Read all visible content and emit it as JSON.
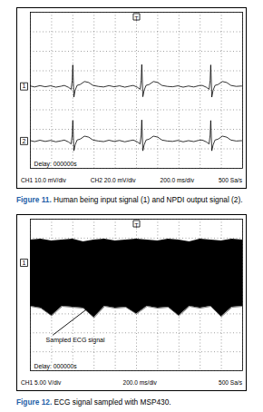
{
  "chart_data": [
    {
      "type": "line",
      "caption": {
        "label": "Figure 11.",
        "text": "Human being input signal (1) and NPDI output signal (2)."
      },
      "delay": "Delay: 000000s",
      "settings": [
        "CH1 10.0 mV/div",
        "CH2 20.0 mV/div",
        "200.0 ms/div",
        "500 Sa/s"
      ],
      "trigger": {
        "label": "T",
        "x": 1000
      },
      "xlim": [
        0,
        2000
      ],
      "xticks": [
        0,
        200,
        400,
        600,
        800,
        1000,
        1200,
        1400,
        1600,
        1800,
        2000
      ],
      "ylim": [
        -4,
        4
      ],
      "yticks": [
        -4,
        -3,
        -2,
        -1,
        0,
        1,
        2,
        3,
        4
      ],
      "grid": true,
      "tick_labels": false,
      "x": [
        0,
        40,
        90,
        140,
        190,
        240,
        290,
        320,
        360,
        384,
        394,
        400,
        410,
        422,
        440,
        470,
        510,
        550,
        590,
        640,
        690,
        740,
        790,
        840,
        890,
        940,
        970,
        1010,
        1034,
        1044,
        1050,
        1060,
        1072,
        1090,
        1120,
        1160,
        1200,
        1240,
        1290,
        1340,
        1390,
        1440,
        1490,
        1540,
        1590,
        1620,
        1660,
        1684,
        1694,
        1700,
        1710,
        1722,
        1740,
        1770,
        1810,
        1850,
        1890,
        1940,
        1990,
        2000
      ],
      "series": [
        {
          "name": "1",
          "color": "#000000",
          "offset": 0.2,
          "values": [
            0.22,
            0.17,
            0.24,
            0.18,
            0.23,
            0.16,
            0.21,
            0.25,
            0.15,
            0.05,
            0.5,
            1.3,
            -0.35,
            0.0,
            0.25,
            0.3,
            0.45,
            0.4,
            0.25,
            0.2,
            0.17,
            0.24,
            0.18,
            0.23,
            0.16,
            0.22,
            0.25,
            0.15,
            0.05,
            0.5,
            1.32,
            -0.33,
            0.0,
            0.25,
            0.3,
            0.45,
            0.4,
            0.25,
            0.2,
            0.18,
            0.23,
            0.16,
            0.22,
            0.17,
            0.24,
            0.25,
            0.15,
            0.05,
            0.5,
            1.3,
            -0.35,
            0.0,
            0.25,
            0.3,
            0.45,
            0.4,
            0.25,
            0.2,
            0.22,
            0.18
          ]
        },
        {
          "name": "2",
          "color": "#000000",
          "offset": -2.6,
          "values": [
            -2.58,
            -2.63,
            -2.56,
            -2.62,
            -2.57,
            -2.64,
            -2.59,
            -2.55,
            -2.65,
            -2.75,
            -2.3,
            -1.55,
            -3.1,
            -2.8,
            -2.55,
            -2.5,
            -2.35,
            -2.4,
            -2.55,
            -2.6,
            -2.63,
            -2.56,
            -2.62,
            -2.57,
            -2.64,
            -2.58,
            -2.55,
            -2.65,
            -2.75,
            -2.3,
            -1.52,
            -3.1,
            -2.8,
            -2.55,
            -2.5,
            -2.35,
            -2.4,
            -2.55,
            -2.6,
            -2.62,
            -2.57,
            -2.64,
            -2.58,
            -2.63,
            -2.56,
            -2.55,
            -2.65,
            -2.75,
            -2.3,
            -1.55,
            -3.1,
            -2.8,
            -2.55,
            -2.5,
            -2.35,
            -2.4,
            -2.55,
            -2.6,
            -2.58,
            -2.62
          ]
        }
      ]
    },
    {
      "type": "area",
      "caption": {
        "label": "Figure 12.",
        "text": "ECG signal sampled with MSP430."
      },
      "delay": "Delay: 000000s",
      "settings": [
        "CH1 5.00 V/div",
        "200.0 ms/div",
        "500 Sa/s"
      ],
      "trigger": {
        "label": "T",
        "x": 1000
      },
      "xlim": [
        0,
        2000
      ],
      "xticks": [
        0,
        200,
        400,
        600,
        800,
        1000,
        1200,
        1400,
        1600,
        1800,
        2000
      ],
      "ylim": [
        -4,
        4
      ],
      "yticks": [
        -4,
        -3,
        -2,
        -1,
        0,
        1,
        2,
        3,
        4
      ],
      "grid": true,
      "tick_labels": false,
      "x": [
        0,
        100,
        200,
        300,
        400,
        500,
        600,
        700,
        800,
        900,
        1000,
        1100,
        1200,
        1300,
        1400,
        1500,
        1600,
        1700,
        1800,
        1900,
        2000
      ],
      "series": [
        {
          "name": "1",
          "color": "#000000",
          "offset": 1.7,
          "upper": [
            2.9,
            2.95,
            2.85,
            2.9,
            2.95,
            2.8,
            2.9,
            2.95,
            2.85,
            2.9,
            2.95,
            2.9,
            2.85,
            2.95,
            2.9,
            2.8,
            2.95,
            2.9,
            2.85,
            2.95,
            2.9
          ],
          "lower": [
            -0.6,
            -0.7,
            -1.1,
            -0.6,
            -0.65,
            -0.7,
            -1.2,
            -0.6,
            -0.7,
            -0.65,
            -1.0,
            -0.6,
            -0.7,
            -0.65,
            -1.1,
            -0.6,
            -0.7,
            -0.6,
            -1.15,
            -0.65,
            -0.6
          ]
        }
      ],
      "annotations": [
        {
          "text": "Sampled ECG signal",
          "x": 146,
          "y": -2.4,
          "arrow_to": [
            590,
            -0.5
          ]
        }
      ]
    }
  ]
}
